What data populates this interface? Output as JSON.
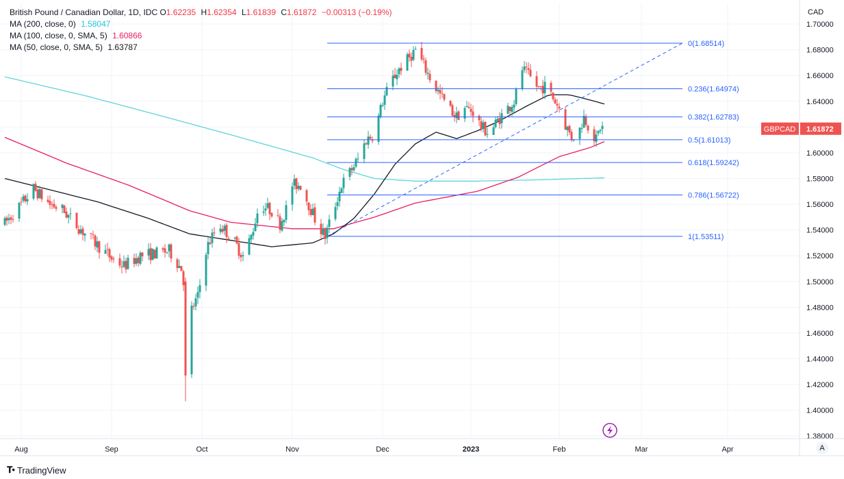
{
  "legend": {
    "symbol": "British Pound / Canadian Dollar, 1D, IDC",
    "o_label": "O",
    "o": "1.62235",
    "h_label": "H",
    "h": "1.62354",
    "l_label": "L",
    "l": "1.61839",
    "c_label": "C",
    "c": "1.61872",
    "change": "−0.00313 (−0.19%)",
    "ma200_label": "MA (200, close, 0)",
    "ma200_value": "1.58047",
    "ma100_label": "MA (100, close, 0, SMA, 5)",
    "ma100_value": "1.60866",
    "ma50_label": "MA (50, close, 0, SMA, 5)",
    "ma50_value": "1.63787"
  },
  "colors": {
    "up": "#26a69a",
    "down": "#ef5350",
    "ma200": "#5fd3d8",
    "ma100": "#e91e63",
    "ma50": "#131722",
    "fib": "#2962ff",
    "badge": "#ef5350"
  },
  "price_badge": {
    "symbol": "GBPCAD",
    "price": "1.61872"
  },
  "branding": {
    "name": "TradingView",
    "auto_button": "A"
  },
  "chart_data": {
    "type": "candlestick",
    "title": "British Pound / Canadian Dollar, 1D, IDC",
    "currency": "CAD",
    "ylim": [
      1.378,
      1.716
    ],
    "y_ticks": [
      "1.70000",
      "1.68000",
      "1.66000",
      "1.64000",
      "1.62000",
      "1.60000",
      "1.58000",
      "1.56000",
      "1.54000",
      "1.52000",
      "1.50000",
      "1.48000",
      "1.46000",
      "1.44000",
      "1.42000",
      "1.40000",
      "1.38000"
    ],
    "x_labels": [
      "Aug",
      "Sep",
      "Oct",
      "Nov",
      "Dec",
      "2023",
      "Feb",
      "Mar",
      "Apr"
    ],
    "x_label_index": [
      8,
      52,
      96,
      140,
      184,
      227,
      270,
      310,
      352
    ],
    "last_index": 292,
    "fibonacci": {
      "start_index": 157,
      "end_index": 330,
      "anchor_low_index": 157,
      "anchor_high_index": 330,
      "levels": [
        {
          "label": "0(1.68514)",
          "value": 1.68514
        },
        {
          "label": "0.236(1.64974)",
          "value": 1.64974
        },
        {
          "label": "0.382(1.62783)",
          "value": 1.62783
        },
        {
          "label": "0.5(1.61013)",
          "value": 1.61013
        },
        {
          "label": "0.618(1.59242)",
          "value": 1.59242
        },
        {
          "label": "0.786(1.56722)",
          "value": 1.56722
        },
        {
          "label": "1(1.53511)",
          "value": 1.53511
        }
      ]
    },
    "anchors": [
      [
        0,
        1.545
      ],
      [
        8,
        1.56
      ],
      [
        14,
        1.572
      ],
      [
        22,
        1.56
      ],
      [
        28,
        1.556
      ],
      [
        36,
        1.542
      ],
      [
        44,
        1.53
      ],
      [
        52,
        1.518
      ],
      [
        58,
        1.512
      ],
      [
        66,
        1.52
      ],
      [
        74,
        1.522
      ],
      [
        80,
        1.524
      ],
      [
        86,
        1.51
      ],
      [
        90,
        1.475
      ],
      [
        94,
        1.488
      ],
      [
        98,
        1.525
      ],
      [
        104,
        1.545
      ],
      [
        110,
        1.535
      ],
      [
        116,
        1.52
      ],
      [
        120,
        1.535
      ],
      [
        124,
        1.56
      ],
      [
        130,
        1.555
      ],
      [
        134,
        1.545
      ],
      [
        138,
        1.56
      ],
      [
        140,
        1.575
      ],
      [
        144,
        1.575
      ],
      [
        148,
        1.56
      ],
      [
        152,
        1.545
      ],
      [
        156,
        1.535
      ],
      [
        160,
        1.555
      ],
      [
        164,
        1.575
      ],
      [
        168,
        1.585
      ],
      [
        172,
        1.595
      ],
      [
        176,
        1.61
      ],
      [
        180,
        1.615
      ],
      [
        184,
        1.64
      ],
      [
        188,
        1.655
      ],
      [
        192,
        1.665
      ],
      [
        196,
        1.672
      ],
      [
        200,
        1.68
      ],
      [
        204,
        1.668
      ],
      [
        208,
        1.655
      ],
      [
        212,
        1.645
      ],
      [
        216,
        1.635
      ],
      [
        220,
        1.628
      ],
      [
        224,
        1.635
      ],
      [
        228,
        1.632
      ],
      [
        232,
        1.62
      ],
      [
        236,
        1.615
      ],
      [
        240,
        1.625
      ],
      [
        244,
        1.633
      ],
      [
        248,
        1.64
      ],
      [
        252,
        1.665
      ],
      [
        256,
        1.658
      ],
      [
        260,
        1.65
      ],
      [
        264,
        1.652
      ],
      [
        266,
        1.645
      ],
      [
        270,
        1.635
      ],
      [
        272,
        1.625
      ],
      [
        276,
        1.612
      ],
      [
        280,
        1.618
      ],
      [
        282,
        1.628
      ],
      [
        284,
        1.622
      ],
      [
        286,
        1.615
      ],
      [
        288,
        1.61
      ],
      [
        290,
        1.62
      ],
      [
        292,
        1.619
      ]
    ],
    "ma200": [
      [
        0,
        1.659
      ],
      [
        40,
        1.644
      ],
      [
        80,
        1.627
      ],
      [
        110,
        1.614
      ],
      [
        130,
        1.605
      ],
      [
        150,
        1.596
      ],
      [
        165,
        1.587
      ],
      [
        180,
        1.58
      ],
      [
        200,
        1.578
      ],
      [
        230,
        1.578
      ],
      [
        260,
        1.579
      ],
      [
        292,
        1.5805
      ]
    ],
    "ma100": [
      [
        0,
        1.612
      ],
      [
        30,
        1.592
      ],
      [
        60,
        1.575
      ],
      [
        90,
        1.555
      ],
      [
        110,
        1.546
      ],
      [
        140,
        1.541
      ],
      [
        160,
        1.541
      ],
      [
        180,
        1.55
      ],
      [
        200,
        1.561
      ],
      [
        230,
        1.57
      ],
      [
        250,
        1.581
      ],
      [
        270,
        1.597
      ],
      [
        285,
        1.604
      ],
      [
        292,
        1.6087
      ]
    ],
    "ma50": [
      [
        0,
        1.58
      ],
      [
        20,
        1.572
      ],
      [
        45,
        1.562
      ],
      [
        70,
        1.549
      ],
      [
        90,
        1.537
      ],
      [
        110,
        1.532
      ],
      [
        130,
        1.527
      ],
      [
        150,
        1.53
      ],
      [
        160,
        1.537
      ],
      [
        170,
        1.549
      ],
      [
        180,
        1.568
      ],
      [
        190,
        1.591
      ],
      [
        200,
        1.607
      ],
      [
        210,
        1.616
      ],
      [
        220,
        1.611
      ],
      [
        230,
        1.617
      ],
      [
        240,
        1.624
      ],
      [
        255,
        1.637
      ],
      [
        265,
        1.645
      ],
      [
        275,
        1.645
      ],
      [
        285,
        1.641
      ],
      [
        292,
        1.6379
      ]
    ]
  }
}
